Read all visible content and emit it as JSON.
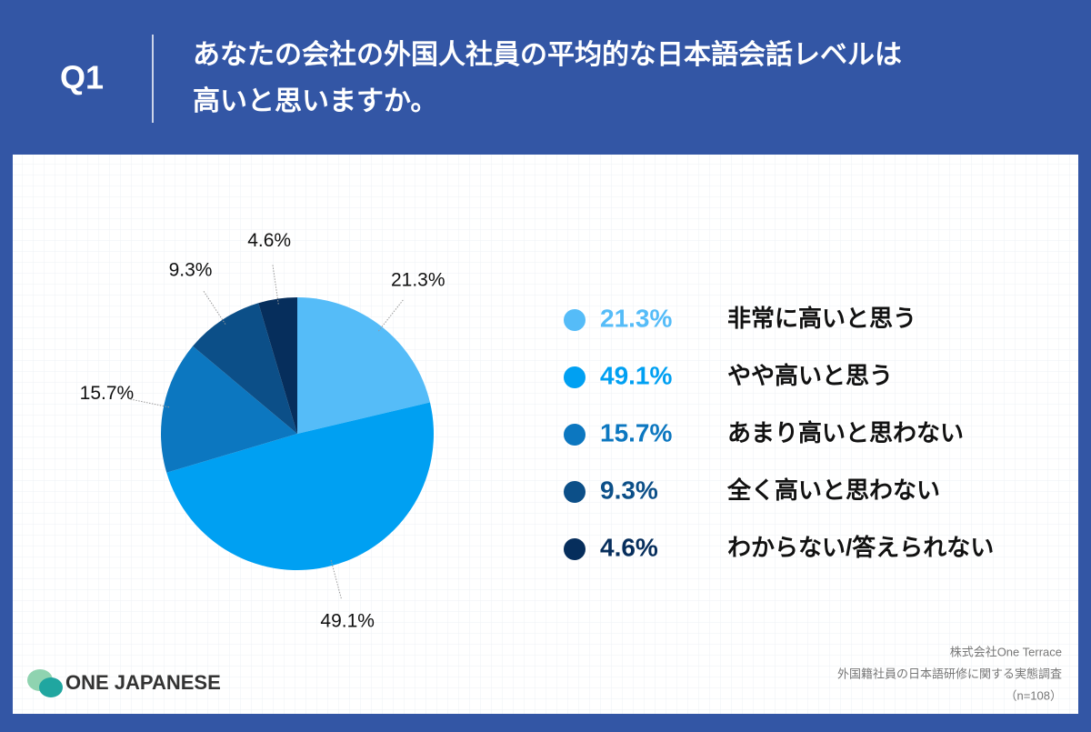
{
  "header": {
    "question": "Q1",
    "title_lines": [
      "あなたの会社の外国人社員の平均的な日本語会話レベルは",
      "高いと思いますか。"
    ]
  },
  "chart_data": {
    "type": "pie",
    "categories": [
      "非常に高いと思う",
      "やや高いと思う",
      "あまり高いと思わない",
      "全く高いと思わない",
      "わからない/答えられない"
    ],
    "values": [
      21.3,
      49.1,
      15.7,
      9.3,
      4.6
    ],
    "value_labels": [
      "21.3%",
      "49.1%",
      "15.7%",
      "9.3%",
      "4.6%"
    ],
    "colors": [
      "#55bcf8",
      "#00a0f2",
      "#0c77c0",
      "#0c4f88",
      "#062e5c"
    ],
    "legend": "right"
  },
  "footer": {
    "logo": "ONE JAPANESE",
    "source_lines": [
      "株式会社One Terrace",
      "外国籍社員の日本語研修に関する実態調査",
      "（n=108）"
    ]
  }
}
